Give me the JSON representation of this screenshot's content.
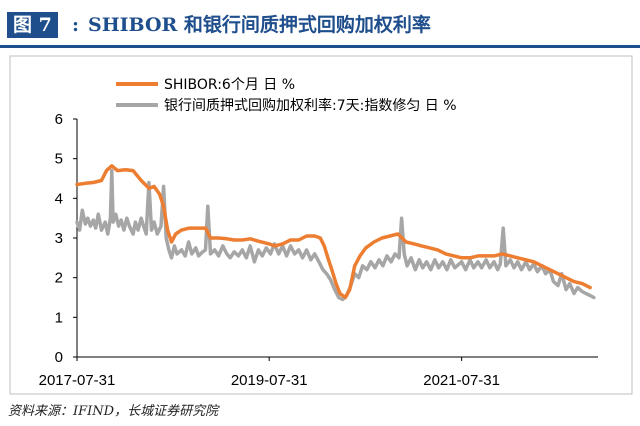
{
  "header": {
    "figure_label": "图 7",
    "colon": ":",
    "title": "SHIBOR 和银行间质押式回购加权利率"
  },
  "source": "资料来源：IFIND，长城证券研究院",
  "colors": {
    "accent": "#1f4e8c",
    "shibor": "#ed7d31",
    "repo": "#a6a6a6"
  },
  "chart_data": {
    "type": "line",
    "title": "SHIBOR 和银行间质押式回购加权利率",
    "xlabel": "",
    "ylabel": "",
    "x_ticks": [
      "2017-07-31",
      "2019-07-31",
      "2021-07-31"
    ],
    "x_range": [
      "2017-07-31",
      "2022-12-31"
    ],
    "ylim": [
      0,
      6
    ],
    "y_ticks": [
      0,
      1,
      2,
      3,
      4,
      5,
      6
    ],
    "grid": false,
    "legend": "top",
    "series": [
      {
        "name": "SHIBOR:6个月 日 %",
        "color": "#ed7d31",
        "points": [
          [
            "2017-07-31",
            4.35
          ],
          [
            "2017-09-01",
            4.38
          ],
          [
            "2017-10-01",
            4.4
          ],
          [
            "2017-11-01",
            4.45
          ],
          [
            "2017-11-20",
            4.7
          ],
          [
            "2017-12-10",
            4.82
          ],
          [
            "2018-01-01",
            4.7
          ],
          [
            "2018-02-01",
            4.72
          ],
          [
            "2018-03-01",
            4.7
          ],
          [
            "2018-04-01",
            4.45
          ],
          [
            "2018-05-01",
            4.25
          ],
          [
            "2018-05-20",
            4.3
          ],
          [
            "2018-06-10",
            4.1
          ],
          [
            "2018-06-25",
            3.8
          ],
          [
            "2018-07-10",
            3.2
          ],
          [
            "2018-07-25",
            2.9
          ],
          [
            "2018-08-10",
            3.1
          ],
          [
            "2018-09-01",
            3.2
          ],
          [
            "2018-10-01",
            3.25
          ],
          [
            "2018-11-01",
            3.25
          ],
          [
            "2018-12-01",
            3.25
          ],
          [
            "2018-12-20",
            3.0
          ],
          [
            "2019-01-20",
            3.0
          ],
          [
            "2019-02-20",
            2.98
          ],
          [
            "2019-03-20",
            2.95
          ],
          [
            "2019-04-20",
            2.95
          ],
          [
            "2019-05-20",
            2.98
          ],
          [
            "2019-06-20",
            2.92
          ],
          [
            "2019-07-31",
            2.85
          ],
          [
            "2019-08-20",
            2.8
          ],
          [
            "2019-09-20",
            2.85
          ],
          [
            "2019-10-20",
            2.95
          ],
          [
            "2019-11-20",
            2.95
          ],
          [
            "2019-12-20",
            3.05
          ],
          [
            "2020-01-20",
            3.05
          ],
          [
            "2020-02-10",
            3.0
          ],
          [
            "2020-02-25",
            2.8
          ],
          [
            "2020-03-10",
            2.5
          ],
          [
            "2020-03-25",
            2.2
          ],
          [
            "2020-04-10",
            1.85
          ],
          [
            "2020-04-25",
            1.6
          ],
          [
            "2020-05-15",
            1.5
          ],
          [
            "2020-06-01",
            1.7
          ],
          [
            "2020-06-20",
            2.3
          ],
          [
            "2020-07-10",
            2.55
          ],
          [
            "2020-08-01",
            2.75
          ],
          [
            "2020-09-01",
            2.9
          ],
          [
            "2020-10-01",
            3.0
          ],
          [
            "2020-11-01",
            3.05
          ],
          [
            "2020-12-01",
            3.1
          ],
          [
            "2021-01-01",
            2.9
          ],
          [
            "2021-02-01",
            2.85
          ],
          [
            "2021-03-01",
            2.8
          ],
          [
            "2021-04-01",
            2.75
          ],
          [
            "2021-05-01",
            2.7
          ],
          [
            "2021-06-01",
            2.6
          ],
          [
            "2021-07-31",
            2.5
          ],
          [
            "2021-09-01",
            2.5
          ],
          [
            "2021-10-01",
            2.55
          ],
          [
            "2021-11-01",
            2.55
          ],
          [
            "2021-12-01",
            2.55
          ],
          [
            "2022-01-01",
            2.6
          ],
          [
            "2022-02-01",
            2.55
          ],
          [
            "2022-03-01",
            2.5
          ],
          [
            "2022-04-01",
            2.45
          ],
          [
            "2022-05-01",
            2.4
          ],
          [
            "2022-06-01",
            2.3
          ],
          [
            "2022-07-01",
            2.2
          ],
          [
            "2022-08-01",
            2.1
          ],
          [
            "2022-09-01",
            2.0
          ],
          [
            "2022-10-01",
            1.9
          ],
          [
            "2022-11-01",
            1.85
          ],
          [
            "2022-12-01",
            1.75
          ]
        ]
      },
      {
        "name": "银行间质押式回购加权利率:7天:指数修匀 日 %",
        "color": "#a6a6a6",
        "points": [
          [
            "2017-07-31",
            3.4
          ],
          [
            "2017-08-10",
            3.2
          ],
          [
            "2017-08-20",
            3.7
          ],
          [
            "2017-09-01",
            3.35
          ],
          [
            "2017-09-10",
            3.5
          ],
          [
            "2017-09-20",
            3.3
          ],
          [
            "2017-10-01",
            3.45
          ],
          [
            "2017-10-10",
            3.25
          ],
          [
            "2017-10-20",
            3.6
          ],
          [
            "2017-11-01",
            3.2
          ],
          [
            "2017-11-15",
            3.4
          ],
          [
            "2017-11-25",
            3.1
          ],
          [
            "2017-12-05",
            3.5
          ],
          [
            "2017-12-10",
            4.7
          ],
          [
            "2017-12-15",
            3.4
          ],
          [
            "2017-12-25",
            3.6
          ],
          [
            "2018-01-05",
            3.3
          ],
          [
            "2018-01-15",
            3.45
          ],
          [
            "2018-01-25",
            3.2
          ],
          [
            "2018-02-05",
            3.5
          ],
          [
            "2018-02-15",
            3.3
          ],
          [
            "2018-03-01",
            3.1
          ],
          [
            "2018-03-10",
            3.4
          ],
          [
            "2018-03-20",
            3.2
          ],
          [
            "2018-04-01",
            3.5
          ],
          [
            "2018-04-10",
            3.3
          ],
          [
            "2018-04-20",
            3.1
          ],
          [
            "2018-04-30",
            4.4
          ],
          [
            "2018-05-10",
            3.2
          ],
          [
            "2018-05-20",
            3.4
          ],
          [
            "2018-06-01",
            3.1
          ],
          [
            "2018-06-15",
            3.3
          ],
          [
            "2018-06-25",
            4.3
          ],
          [
            "2018-07-05",
            3.0
          ],
          [
            "2018-07-15",
            2.7
          ],
          [
            "2018-07-25",
            2.5
          ],
          [
            "2018-08-05",
            2.8
          ],
          [
            "2018-08-15",
            2.6
          ],
          [
            "2018-09-01",
            2.7
          ],
          [
            "2018-09-15",
            2.55
          ],
          [
            "2018-09-28",
            2.9
          ],
          [
            "2018-10-10",
            2.6
          ],
          [
            "2018-10-25",
            2.75
          ],
          [
            "2018-11-05",
            2.55
          ],
          [
            "2018-11-20",
            2.65
          ],
          [
            "2018-12-01",
            2.7
          ],
          [
            "2018-12-10",
            3.8
          ],
          [
            "2018-12-20",
            2.6
          ],
          [
            "2019-01-05",
            2.7
          ],
          [
            "2019-01-20",
            2.55
          ],
          [
            "2019-02-05",
            2.8
          ],
          [
            "2019-02-20",
            2.6
          ],
          [
            "2019-03-05",
            2.5
          ],
          [
            "2019-03-20",
            2.65
          ],
          [
            "2019-04-05",
            2.55
          ],
          [
            "2019-04-20",
            2.7
          ],
          [
            "2019-05-05",
            2.5
          ],
          [
            "2019-05-20",
            2.8
          ],
          [
            "2019-06-05",
            2.4
          ],
          [
            "2019-06-20",
            2.7
          ],
          [
            "2019-07-05",
            2.55
          ],
          [
            "2019-07-20",
            2.75
          ],
          [
            "2019-08-05",
            2.6
          ],
          [
            "2019-08-20",
            2.85
          ],
          [
            "2019-09-05",
            2.6
          ],
          [
            "2019-09-20",
            2.8
          ],
          [
            "2019-10-05",
            2.55
          ],
          [
            "2019-10-20",
            2.8
          ],
          [
            "2019-11-05",
            2.6
          ],
          [
            "2019-11-20",
            2.7
          ],
          [
            "2019-12-05",
            2.5
          ],
          [
            "2019-12-20",
            2.7
          ],
          [
            "2020-01-05",
            2.45
          ],
          [
            "2020-01-20",
            2.6
          ],
          [
            "2020-02-05",
            2.4
          ],
          [
            "2020-02-20",
            2.2
          ],
          [
            "2020-03-05",
            2.1
          ],
          [
            "2020-03-20",
            1.95
          ],
          [
            "2020-04-05",
            1.7
          ],
          [
            "2020-04-20",
            1.5
          ],
          [
            "2020-05-05",
            1.45
          ],
          [
            "2020-05-20",
            1.55
          ],
          [
            "2020-06-05",
            1.8
          ],
          [
            "2020-06-20",
            2.1
          ],
          [
            "2020-07-05",
            2.0
          ],
          [
            "2020-07-20",
            2.3
          ],
          [
            "2020-08-05",
            2.2
          ],
          [
            "2020-08-20",
            2.4
          ],
          [
            "2020-09-05",
            2.25
          ],
          [
            "2020-09-20",
            2.45
          ],
          [
            "2020-10-05",
            2.3
          ],
          [
            "2020-10-20",
            2.55
          ],
          [
            "2020-11-05",
            2.4
          ],
          [
            "2020-11-20",
            2.6
          ],
          [
            "2020-12-05",
            2.5
          ],
          [
            "2020-12-15",
            3.5
          ],
          [
            "2020-12-25",
            2.6
          ],
          [
            "2021-01-05",
            2.3
          ],
          [
            "2021-01-20",
            2.5
          ],
          [
            "2021-02-05",
            2.2
          ],
          [
            "2021-02-20",
            2.45
          ],
          [
            "2021-03-05",
            2.25
          ],
          [
            "2021-03-20",
            2.4
          ],
          [
            "2021-04-05",
            2.2
          ],
          [
            "2021-04-20",
            2.45
          ],
          [
            "2021-05-05",
            2.25
          ],
          [
            "2021-05-20",
            2.4
          ],
          [
            "2021-06-05",
            2.2
          ],
          [
            "2021-06-20",
            2.45
          ],
          [
            "2021-07-05",
            2.25
          ],
          [
            "2021-07-31",
            2.4
          ],
          [
            "2021-08-15",
            2.2
          ],
          [
            "2021-09-01",
            2.45
          ],
          [
            "2021-09-15",
            2.25
          ],
          [
            "2021-10-01",
            2.4
          ],
          [
            "2021-10-15",
            2.25
          ],
          [
            "2021-11-01",
            2.45
          ],
          [
            "2021-11-15",
            2.25
          ],
          [
            "2021-12-01",
            2.4
          ],
          [
            "2021-12-15",
            2.2
          ],
          [
            "2021-12-25",
            2.35
          ],
          [
            "2022-01-05",
            3.25
          ],
          [
            "2022-01-15",
            2.3
          ],
          [
            "2022-02-01",
            2.45
          ],
          [
            "2022-02-15",
            2.25
          ],
          [
            "2022-03-01",
            2.4
          ],
          [
            "2022-03-15",
            2.2
          ],
          [
            "2022-04-01",
            2.4
          ],
          [
            "2022-04-15",
            2.2
          ],
          [
            "2022-05-01",
            2.35
          ],
          [
            "2022-05-15",
            2.15
          ],
          [
            "2022-06-01",
            2.3
          ],
          [
            "2022-06-15",
            2.1
          ],
          [
            "2022-07-01",
            2.2
          ],
          [
            "2022-07-15",
            1.9
          ],
          [
            "2022-08-01",
            1.8
          ],
          [
            "2022-08-15",
            2.1
          ],
          [
            "2022-09-01",
            1.7
          ],
          [
            "2022-09-15",
            1.85
          ],
          [
            "2022-10-01",
            1.6
          ],
          [
            "2022-10-15",
            1.75
          ],
          [
            "2022-11-01",
            1.65
          ],
          [
            "2022-11-15",
            1.6
          ],
          [
            "2022-12-01",
            1.55
          ],
          [
            "2022-12-15",
            1.5
          ]
        ]
      }
    ]
  }
}
